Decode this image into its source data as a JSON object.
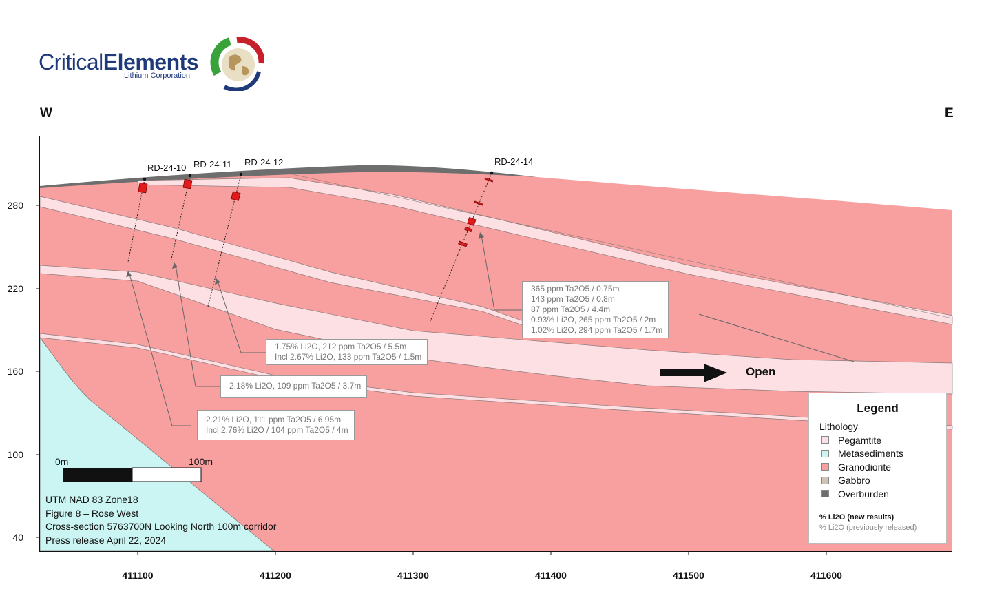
{
  "logo": {
    "word_light": "Critical",
    "word_bold": "Elements",
    "subtitle": "Lithium Corporation"
  },
  "directions": {
    "west": "W",
    "east": "E"
  },
  "axes": {
    "y_ticks": [
      "280",
      "220",
      "160",
      "100",
      "40"
    ],
    "x_ticks": [
      "411100",
      "411200",
      "411300",
      "411400",
      "411500",
      "411600"
    ]
  },
  "drillholes": [
    "RD-24-10",
    "RD-24-11",
    "RD-24-12",
    "RD-24-14"
  ],
  "callouts": {
    "rd14": [
      "365 ppm Ta2O5 / 0.75m",
      "143 ppm Ta2O5 / 0.8m",
      "87 ppm Ta2O5 / 4.4m",
      "0.93% Li2O, 265 ppm Ta2O5 / 2m",
      "1.02% Li2O, 294 ppm Ta2O5 / 1.7m"
    ],
    "rd12": [
      "1.75% Li2O, 212 ppm Ta2O5 / 5.5m",
      "Incl 2.67% Li2O, 133 ppm Ta2O5 / 1.5m"
    ],
    "rd11": [
      "2.18% Li2O, 109 ppm Ta2O5 / 3.7m"
    ],
    "rd10": [
      "2.21% Li2O, 111 ppm Ta2O5 / 6.95m",
      "Incl 2.76% Li2O / 104 ppm Ta2O5 / 4m"
    ]
  },
  "open_label": "Open",
  "scale_bar": {
    "start": "0m",
    "end": "100m"
  },
  "info_lines": [
    "UTM NAD 83 Zone18",
    "Figure 8 – Rose West",
    "Cross-section 5763700N Looking North 100m corridor",
    "Press release April 22, 2024"
  ],
  "legend": {
    "title": "Legend",
    "subtitle": "Lithology",
    "items": [
      {
        "label": "Pegamtite",
        "color": "#fde0e4"
      },
      {
        "label": "Metasediments",
        "color": "#cbf5f2"
      },
      {
        "label": "Granodiorite",
        "color": "#f8a0a0"
      },
      {
        "label": "Gabbro",
        "color": "#cfc4b4"
      },
      {
        "label": "Overburden",
        "color": "#6e6e6e"
      }
    ],
    "new_results": "% Li2O (new results)",
    "prev_results": "% Li2O (previously released)"
  }
}
